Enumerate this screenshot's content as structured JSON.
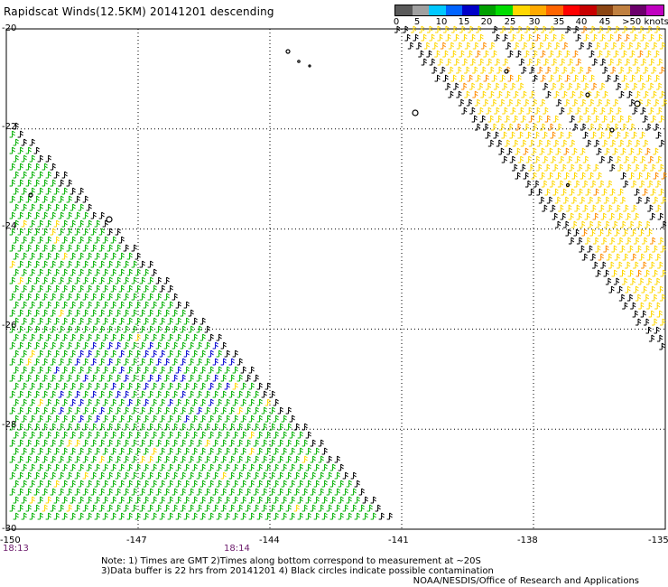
{
  "title": "Rapidscat Winds(12.5KM) 20141201 descending",
  "legend": {
    "colors": [
      "#5a5a5a",
      "#a0a0a0",
      "#00c8ff",
      "#0064ff",
      "#0000c8",
      "#00a000",
      "#00dc00",
      "#ffd700",
      "#ffaa00",
      "#ff6400",
      "#ff0000",
      "#c80000",
      "#8b4513",
      "#c08040",
      "#6b006b",
      "#c000c0"
    ],
    "labels": [
      "0",
      "5",
      "10",
      "15",
      "20",
      "25",
      "30",
      "35",
      "40",
      "45",
      ">50 knots"
    ]
  },
  "map": {
    "lon_range": [
      -150,
      -135
    ],
    "lat_range": [
      -30,
      -20
    ],
    "lat_labels": [
      "-20",
      "-22",
      "-24",
      "-26",
      "-28",
      "-30"
    ],
    "lon_labels": [
      "-150",
      "-147",
      "-144",
      "-141",
      "-138",
      "-135"
    ],
    "time_labels": [
      "18:13",
      "18:14"
    ]
  },
  "notes": "Note: 1) Times are GMT 2)Times along bottom correspond to measurement at ~20S\n3)Data buffer is 22 hrs from 20141201 4) Black circles indicate possible contamination",
  "credit": "NOAA/NESDIS/Office of Research and Applications"
}
